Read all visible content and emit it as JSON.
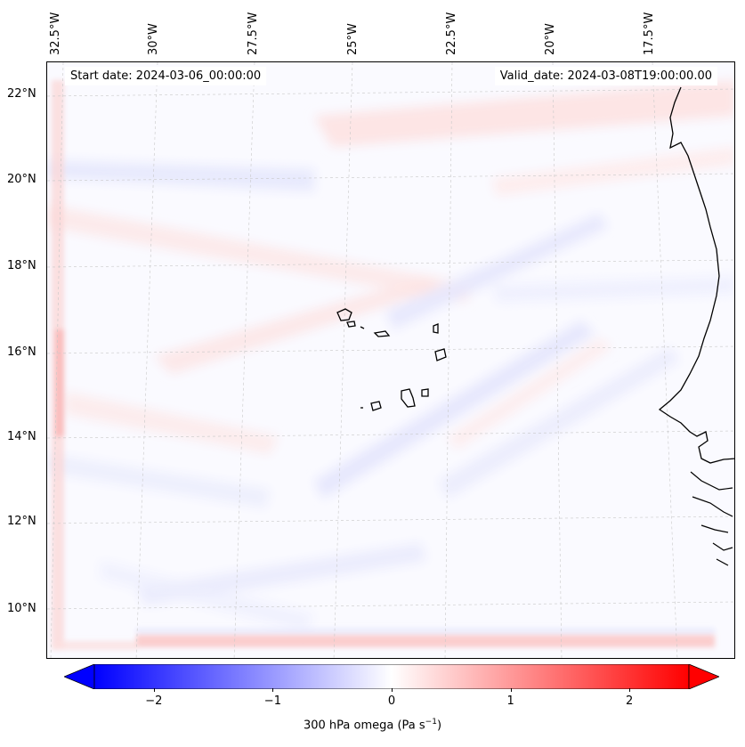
{
  "map": {
    "start_date": "Start date: 2024-03-06_00:00:00",
    "valid_date": "Valid_date: 2024-03-08T19:00:00.00",
    "lon_labels": [
      "32.5°W",
      "30°W",
      "27.5°W",
      "25°W",
      "22.5°W",
      "20°W",
      "17.5°W"
    ],
    "lat_labels": [
      "22°N",
      "20°N",
      "18°N",
      "16°N",
      "14°N",
      "12°N",
      "10°N"
    ],
    "field": "300 hPa omega"
  },
  "colorbar": {
    "ticks": [
      "−2",
      "−1",
      "0",
      "1",
      "2"
    ],
    "tick_values": [
      -2,
      -1,
      0,
      1,
      2
    ],
    "range": [
      -2.5,
      2.5
    ],
    "label": "300 hPa omega (Pa s",
    "label_sup": "−1",
    "label_end": ")",
    "colors": {
      "negative": "#0000ff",
      "zero": "#ffffff",
      "positive": "#ff0000"
    }
  }
}
